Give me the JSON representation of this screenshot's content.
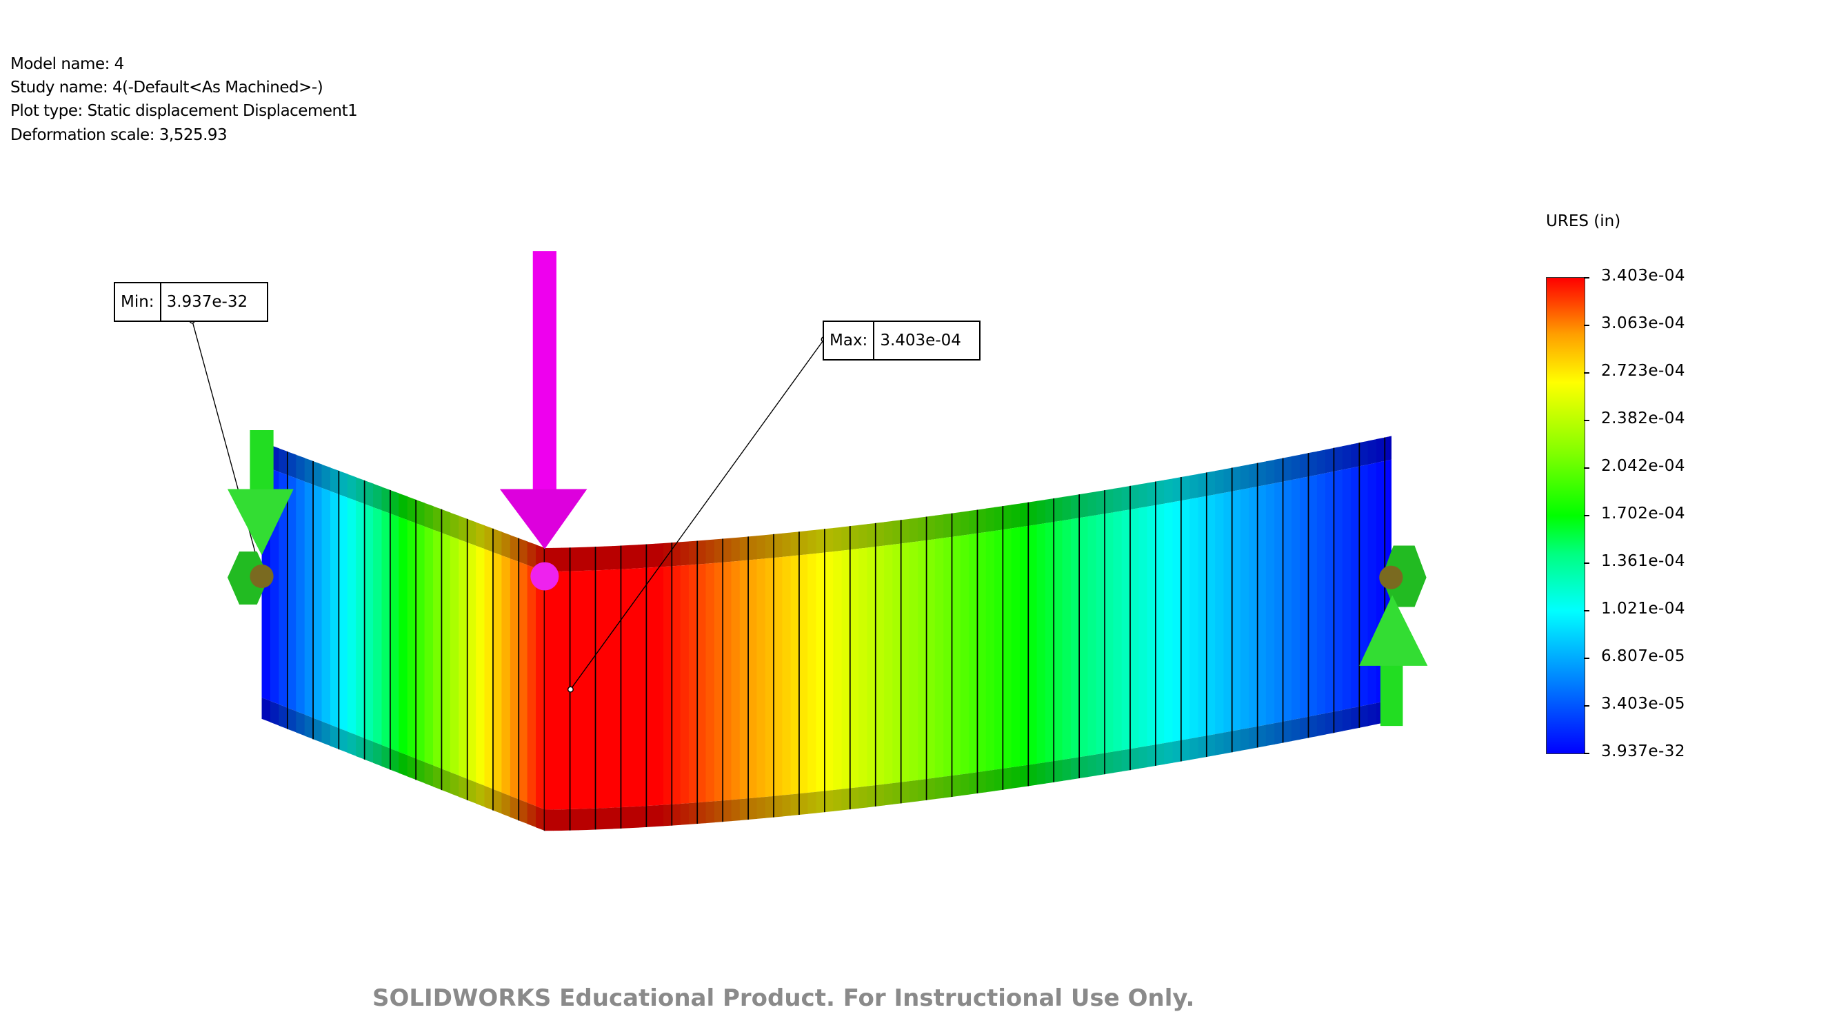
{
  "info": {
    "model_name": "Model name: 4",
    "study_name": "Study name: 4(-Default<As Machined>-)",
    "plot_type": "Plot type: Static displacement Displacement1",
    "deformation_scale": "Deformation scale: 3,525.93"
  },
  "legend": {
    "title": "URES (in)",
    "ticks": [
      "3.403e-04",
      "3.063e-04",
      "2.723e-04",
      "2.382e-04",
      "2.042e-04",
      "1.702e-04",
      "1.361e-04",
      "1.021e-04",
      "6.807e-05",
      "3.403e-05",
      "3.937e-32"
    ],
    "colors": {
      "min": "#0000ff",
      "low": "#00ffff",
      "mid": "#00ff00",
      "high": "#ffff00",
      "max": "#ff0000"
    }
  },
  "probes": {
    "min": {
      "label": "Min:",
      "value": "3.937e-32"
    },
    "max": {
      "label": "Max:",
      "value": "3.403e-04"
    }
  },
  "symbols": {
    "load_arrow_color": "#ee00ee",
    "fixture_color": "#22cc22",
    "pin_color": "#7a6a20"
  },
  "watermark": "SOLIDWORKS Educational Product. For Instructional Use Only."
}
